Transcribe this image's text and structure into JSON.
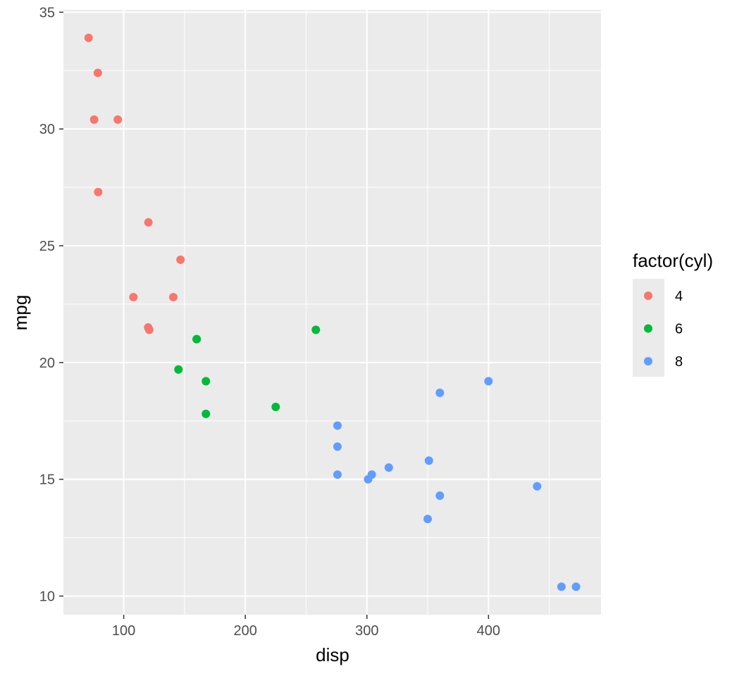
{
  "chart_data": {
    "type": "scatter",
    "xlabel": "disp",
    "ylabel": "mpg",
    "xlim": [
      50.4,
      492.5
    ],
    "ylim": [
      9.2,
      35.1
    ],
    "x_ticks": [
      100,
      200,
      300,
      400
    ],
    "y_ticks": [
      10,
      15,
      20,
      25,
      30,
      35
    ],
    "grid": true,
    "legend": {
      "title": "factor(cyl)",
      "placement": "right"
    },
    "series": [
      {
        "name": "4",
        "color": "#F8766D",
        "points": [
          [
            71.1,
            33.9
          ],
          [
            78.7,
            32.4
          ],
          [
            75.7,
            30.4
          ],
          [
            95.1,
            30.4
          ],
          [
            79.0,
            27.3
          ],
          [
            120.3,
            26.0
          ],
          [
            146.7,
            24.4
          ],
          [
            108.0,
            22.8
          ],
          [
            140.8,
            22.8
          ],
          [
            120.1,
            21.5
          ],
          [
            121.0,
            21.4
          ]
        ]
      },
      {
        "name": "6",
        "color": "#00BA38",
        "points": [
          [
            160.0,
            21.0
          ],
          [
            160.0,
            21.0
          ],
          [
            258.0,
            21.4
          ],
          [
            145.0,
            19.7
          ],
          [
            167.6,
            19.2
          ],
          [
            225.0,
            18.1
          ],
          [
            167.6,
            17.8
          ]
        ]
      },
      {
        "name": "8",
        "color": "#619CFF",
        "points": [
          [
            360.0,
            18.7
          ],
          [
            400.0,
            19.2
          ],
          [
            275.8,
            17.3
          ],
          [
            275.8,
            16.4
          ],
          [
            275.8,
            15.2
          ],
          [
            304.0,
            15.2
          ],
          [
            301.0,
            15.0
          ],
          [
            318.0,
            15.5
          ],
          [
            351.0,
            15.8
          ],
          [
            360.0,
            14.3
          ],
          [
            350.0,
            13.3
          ],
          [
            440.0,
            14.7
          ],
          [
            460.0,
            10.4
          ],
          [
            472.0,
            10.4
          ]
        ]
      }
    ]
  }
}
